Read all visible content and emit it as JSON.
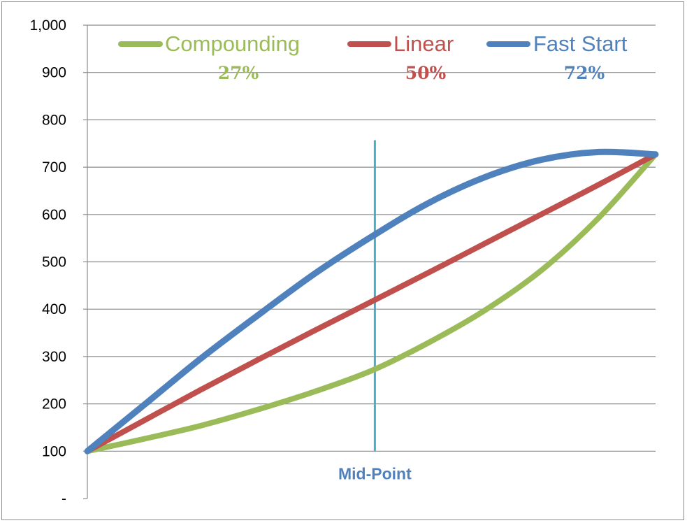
{
  "chart_data": {
    "type": "line",
    "yticks": [
      "-",
      "100",
      "200",
      "300",
      "400",
      "500",
      "600",
      "700",
      "800",
      "900",
      "1,000"
    ],
    "ylim": [
      0,
      1000
    ],
    "xlim": [
      0,
      1
    ],
    "grid": "horizontal",
    "legend_placement": "top",
    "series": [
      {
        "name": "Compounding",
        "color": "#9bbb59",
        "percent_label": "27%",
        "x": [
          0,
          0.1,
          0.2,
          0.3,
          0.4,
          0.5,
          0.6,
          0.7,
          0.8,
          0.9,
          1.0
        ],
        "y": [
          100,
          126,
          154,
          188,
          226,
          270,
          329,
          398,
          483,
          593,
          727
        ]
      },
      {
        "name": "Linear",
        "color": "#c0504d",
        "percent_label": "50%",
        "x": [
          0,
          0.1,
          0.2,
          0.3,
          0.4,
          0.5,
          0.6,
          0.7,
          0.8,
          0.9,
          1.0
        ],
        "y": [
          100,
          165,
          230,
          293,
          355,
          416,
          477,
          539,
          601,
          663,
          727
        ]
      },
      {
        "name": "Fast Start",
        "color": "#4f81bd",
        "percent_label": "72%",
        "x": [
          0,
          0.1,
          0.2,
          0.3,
          0.4,
          0.5,
          0.6,
          0.7,
          0.8,
          0.9,
          1.0
        ],
        "y": [
          100,
          198,
          296,
          387,
          475,
          553,
          624,
          679,
          716,
          732,
          727
        ]
      }
    ],
    "annotations": [
      {
        "text": "Mid-Point",
        "x": 0.506,
        "y_from": 100,
        "y_to": 757,
        "color": "#4bacc6",
        "label_color": "#4f81bd"
      }
    ]
  }
}
